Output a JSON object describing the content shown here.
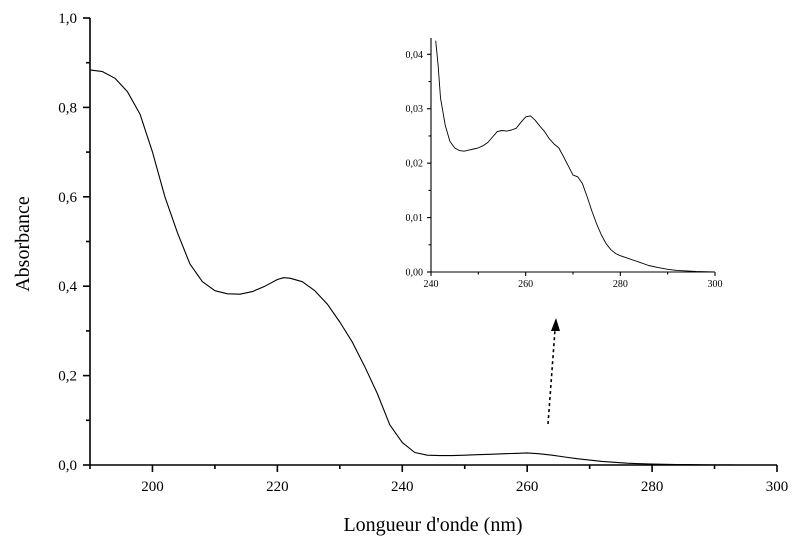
{
  "chart_data": [
    {
      "id": "main",
      "type": "line",
      "title": "",
      "xlabel": "Longueur d'onde (nm)",
      "ylabel": "Absorbance",
      "xlim": [
        190,
        300
      ],
      "ylim": [
        0,
        1.0
      ],
      "x_ticks": [
        200,
        220,
        240,
        260,
        280,
        300
      ],
      "x_tick_labels": [
        "200",
        "220",
        "240",
        "260",
        "280",
        "300"
      ],
      "y_ticks": [
        0,
        0.2,
        0.4,
        0.6,
        0.8,
        1.0
      ],
      "y_tick_labels": [
        "0,0",
        "0,2",
        "0,4",
        "0,6",
        "0,8",
        "1,0"
      ],
      "grid": false,
      "color": "#000000",
      "series": [
        {
          "x": [
            190,
            192,
            194,
            196,
            198,
            200,
            202,
            204,
            206,
            208,
            210,
            212,
            214,
            216,
            218,
            220,
            221,
            222,
            224,
            226,
            228,
            230,
            232,
            234,
            236,
            238,
            240,
            242,
            244,
            246,
            248,
            250,
            252,
            254,
            256,
            258,
            260,
            262,
            264,
            266,
            268,
            270,
            272,
            274,
            276,
            278,
            280,
            282,
            284,
            286,
            288,
            290,
            292,
            294,
            296,
            298,
            300
          ],
          "y": [
            0.884,
            0.88,
            0.865,
            0.835,
            0.785,
            0.7,
            0.6,
            0.52,
            0.45,
            0.41,
            0.39,
            0.383,
            0.382,
            0.388,
            0.4,
            0.415,
            0.419,
            0.418,
            0.41,
            0.39,
            0.36,
            0.32,
            0.275,
            0.22,
            0.16,
            0.09,
            0.05,
            0.028,
            0.022,
            0.021,
            0.021,
            0.022,
            0.023,
            0.024,
            0.025,
            0.026,
            0.027,
            0.025,
            0.022,
            0.018,
            0.014,
            0.011,
            0.008,
            0.006,
            0.004,
            0.003,
            0.002,
            0.0015,
            0.001,
            0.0008,
            0.0005,
            0.0003,
            0.0002,
            0.0001,
            0,
            0,
            0
          ]
        }
      ]
    },
    {
      "id": "inset",
      "type": "line",
      "title": "",
      "xlabel": "",
      "ylabel": "",
      "xlim": [
        240,
        300
      ],
      "ylim": [
        0,
        0.043
      ],
      "x_ticks": [
        240,
        260,
        280,
        300
      ],
      "x_tick_labels": [
        "240",
        "260",
        "280",
        "300"
      ],
      "y_ticks": [
        0,
        0.01,
        0.02,
        0.03,
        0.04
      ],
      "y_tick_labels": [
        "0,00",
        "0,01",
        "0,02",
        "0,03",
        "0,04"
      ],
      "grid": false,
      "color": "#000000",
      "series": [
        {
          "x": [
            241,
            241.5,
            242,
            243,
            244,
            245,
            246,
            247,
            248,
            249,
            250,
            251,
            252,
            253,
            254,
            255,
            256,
            257,
            258,
            259,
            260,
            261,
            262,
            263,
            264,
            265,
            266,
            267,
            268,
            269,
            270,
            271,
            272,
            273,
            274,
            275,
            276,
            277,
            278,
            279,
            280,
            282,
            284,
            286,
            288,
            290,
            292,
            294,
            296,
            298,
            300
          ],
          "y": [
            0.0425,
            0.038,
            0.032,
            0.027,
            0.024,
            0.0228,
            0.0223,
            0.0222,
            0.0224,
            0.0226,
            0.0228,
            0.0232,
            0.0238,
            0.0248,
            0.0258,
            0.026,
            0.0259,
            0.0261,
            0.0264,
            0.0275,
            0.0285,
            0.0287,
            0.0279,
            0.0268,
            0.0258,
            0.0245,
            0.0235,
            0.0228,
            0.0212,
            0.0195,
            0.0178,
            0.0175,
            0.0162,
            0.0138,
            0.0112,
            0.0088,
            0.0068,
            0.0052,
            0.0041,
            0.0034,
            0.003,
            0.0024,
            0.0018,
            0.0012,
            0.0008,
            0.0005,
            0.0003,
            0.0002,
            0.0001,
            5e-05,
            0
          ]
        }
      ]
    }
  ]
}
